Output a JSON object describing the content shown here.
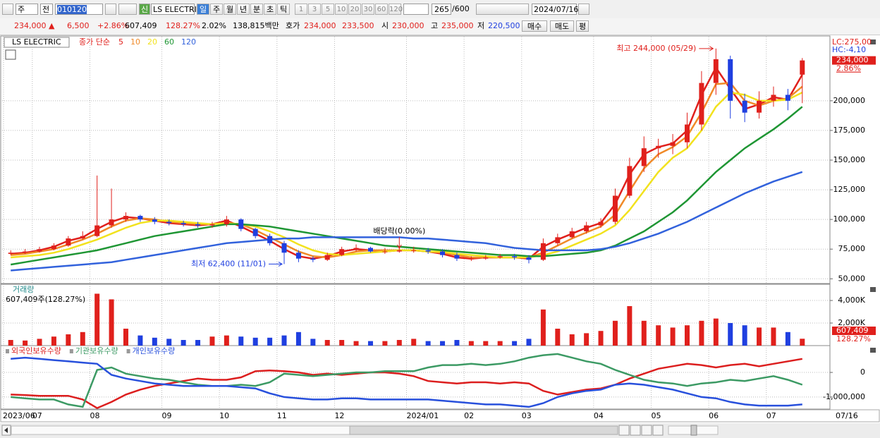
{
  "toolbar": {
    "market": "주",
    "prev": "전",
    "code": "010120",
    "new": "신",
    "name": "LS ELECTRI",
    "periods": [
      "일",
      "주",
      "월",
      "년",
      "분",
      "초",
      "틱"
    ],
    "intervals": [
      "1",
      "3",
      "5",
      "10",
      "20",
      "30",
      "60",
      "120"
    ],
    "count": "265",
    "max_count": "/600",
    "date": "2024/07/16"
  },
  "info_bar": {
    "price": "234,000 ▲",
    "change": "6,500",
    "change_rate": "+2.86%",
    "volume": "607,409",
    "volume_rate": "128.27%",
    "turnover": "2.02%",
    "amount": "138,815백만",
    "bid_label": "호가",
    "ask": "234,000",
    "bid": "233,500",
    "open_label": "시",
    "open": "230,000",
    "high_label": "고",
    "high": "235,000",
    "low_label": "저",
    "low": "220,500",
    "buy": "매수",
    "sell": "매도",
    "avg": "평"
  },
  "chart_data": [
    {
      "type": "candlestick",
      "title": "LS ELECTRIC",
      "subtitle": "종가 단순",
      "categories": [
        "2023/06",
        null,
        "07",
        null,
        null,
        null,
        "08",
        null,
        null,
        null,
        null,
        "09",
        null,
        null,
        null,
        "10",
        null,
        null,
        null,
        "11",
        null,
        null,
        null,
        "12",
        null,
        null,
        null,
        null,
        "2024/01",
        null,
        null,
        null,
        "02",
        null,
        null,
        null,
        "03",
        null,
        null,
        null,
        null,
        "04",
        null,
        null,
        null,
        "05",
        null,
        null,
        null,
        "06",
        null,
        null,
        null,
        "07",
        null,
        null
      ],
      "x_end_label": "07/16",
      "open": [
        71000,
        72000,
        73000,
        75000,
        78000,
        84000,
        86000,
        95000,
        100000,
        103000,
        100000,
        98000,
        97000,
        96000,
        95000,
        96000,
        100000,
        92000,
        86000,
        80000,
        72000,
        67000,
        66000,
        70000,
        75000,
        76000,
        73000,
        73000,
        74000,
        74000,
        73000,
        70000,
        67000,
        67000,
        68000,
        69000,
        68000,
        66000,
        80000,
        85000,
        90000,
        95000,
        98000,
        120000,
        145000,
        160000,
        162000,
        165000,
        180000,
        215000,
        235000,
        200000,
        190000,
        200000,
        205000,
        222000
      ],
      "high": [
        74000,
        75000,
        77000,
        80000,
        86000,
        90000,
        137000,
        126000,
        106000,
        104000,
        102000,
        100000,
        99000,
        98000,
        98000,
        103000,
        101000,
        93000,
        88000,
        82000,
        74000,
        69000,
        72000,
        77000,
        79000,
        77000,
        76000,
        76000,
        77000,
        76000,
        75000,
        72000,
        69000,
        70000,
        71000,
        71000,
        70000,
        84000,
        88000,
        93000,
        98000,
        101000,
        126000,
        152000,
        170000,
        168000,
        172000,
        190000,
        225000,
        244000,
        238000,
        206000,
        208000,
        212000,
        210000,
        236000
      ],
      "low": [
        70000,
        71000,
        72000,
        74000,
        77000,
        83000,
        85000,
        93000,
        98000,
        98000,
        96000,
        95000,
        94000,
        93000,
        93000,
        94000,
        90000,
        84000,
        78000,
        62400,
        64000,
        64000,
        65000,
        69000,
        73000,
        72000,
        71000,
        72000,
        72000,
        71000,
        68000,
        65000,
        65000,
        66000,
        67000,
        66000,
        63000,
        65000,
        78000,
        84000,
        88000,
        93000,
        96000,
        118000,
        140000,
        152000,
        155000,
        160000,
        175000,
        205000,
        185000,
        182000,
        185000,
        195000,
        192000,
        198000
      ],
      "close": [
        72000,
        73000,
        75000,
        78000,
        84000,
        86000,
        95000,
        100000,
        103000,
        100000,
        98000,
        97000,
        96000,
        95000,
        96000,
        100000,
        92000,
        86000,
        80000,
        72000,
        67000,
        66000,
        70000,
        75000,
        76000,
        73000,
        73000,
        74000,
        74000,
        73000,
        70000,
        67000,
        67000,
        68000,
        69000,
        68000,
        66000,
        80000,
        85000,
        90000,
        95000,
        98000,
        120000,
        145000,
        160000,
        162000,
        165000,
        180000,
        215000,
        235000,
        200000,
        190000,
        200000,
        205000,
        200000,
        234000
      ],
      "up_color": "#e0201c",
      "down_color": "#1f3fe0",
      "series": [
        {
          "name": "5",
          "color": "#e0201c",
          "values": [
            71000,
            72000,
            74000,
            77000,
            82000,
            85000,
            92000,
            98000,
            102000,
            101000,
            99000,
            97000,
            96000,
            95000,
            96000,
            99000,
            94000,
            88000,
            82000,
            75000,
            69000,
            67000,
            69000,
            73000,
            75000,
            74000,
            73000,
            74000,
            74000,
            73000,
            71000,
            68000,
            67000,
            68000,
            68000,
            68000,
            67000,
            77000,
            83000,
            88000,
            93000,
            97000,
            113000,
            138000,
            155000,
            161000,
            164000,
            175000,
            205000,
            228000,
            210000,
            193000,
            197000,
            203000,
            201000,
            222000
          ]
        },
        {
          "name": "10",
          "color": "#f08a28",
          "values": [
            70000,
            71000,
            73000,
            75000,
            79000,
            83000,
            88000,
            94000,
            99000,
            101000,
            100000,
            98000,
            97000,
            96000,
            96000,
            97000,
            96000,
            91000,
            85000,
            79000,
            73000,
            69000,
            68000,
            70000,
            73000,
            74000,
            74000,
            74000,
            74000,
            73000,
            72000,
            70000,
            68000,
            68000,
            68000,
            68000,
            68000,
            72000,
            78000,
            84000,
            89000,
            94000,
            104000,
            124000,
            143000,
            155000,
            161000,
            170000,
            190000,
            214000,
            215000,
            200000,
            196000,
            200000,
            202000,
            212000
          ]
        },
        {
          "name": "20",
          "color": "#f2e21e",
          "values": [
            68000,
            69000,
            70000,
            72000,
            75000,
            79000,
            83000,
            88000,
            93000,
            97000,
            99000,
            99000,
            98000,
            97000,
            96000,
            97000,
            96000,
            94000,
            90000,
            85000,
            79000,
            74000,
            71000,
            70000,
            71000,
            72000,
            73000,
            74000,
            74000,
            73000,
            73000,
            71000,
            70000,
            69000,
            68000,
            68000,
            68000,
            70000,
            73000,
            78000,
            83000,
            88000,
            95000,
            108000,
            124000,
            140000,
            152000,
            160000,
            175000,
            195000,
            207000,
            205000,
            200000,
            200000,
            201000,
            207000
          ]
        },
        {
          "name": "60",
          "color": "#1f9634",
          "values": [
            62000,
            64000,
            66000,
            68000,
            70000,
            72000,
            74000,
            77000,
            80000,
            83000,
            86000,
            88000,
            90000,
            92000,
            94000,
            96000,
            96000,
            95000,
            94000,
            92000,
            90000,
            88000,
            86000,
            84000,
            82000,
            80000,
            78000,
            77000,
            76000,
            75000,
            74000,
            73000,
            72000,
            71000,
            70000,
            70000,
            69000,
            69000,
            70000,
            71000,
            72000,
            74000,
            78000,
            84000,
            90000,
            98000,
            106000,
            116000,
            128000,
            140000,
            150000,
            160000,
            168000,
            176000,
            185000,
            195000
          ]
        },
        {
          "name": "120",
          "color": "#3262dc",
          "values": [
            57000,
            58000,
            59000,
            60000,
            61000,
            62000,
            63000,
            64000,
            66000,
            68000,
            70000,
            72000,
            74000,
            76000,
            78000,
            80000,
            81000,
            82000,
            83000,
            84000,
            84000,
            85000,
            85000,
            85000,
            85000,
            85000,
            85000,
            85000,
            84000,
            84000,
            83000,
            82000,
            81000,
            80000,
            78000,
            76000,
            75000,
            74000,
            74000,
            74000,
            74000,
            75000,
            77000,
            80000,
            84000,
            88000,
            93000,
            98000,
            104000,
            110000,
            116000,
            122000,
            127000,
            132000,
            136000,
            140000
          ]
        }
      ],
      "ylim": [
        46000,
        254000
      ],
      "yticks": [
        {
          "value": 50000,
          "label": "50,000"
        },
        {
          "value": 75000,
          "label": "75,000"
        },
        {
          "value": 100000,
          "label": "100,000"
        },
        {
          "value": 125000,
          "label": "125,000"
        },
        {
          "value": 150000,
          "label": "150,000"
        },
        {
          "value": 175000,
          "label": "175,000"
        },
        {
          "value": 200000,
          "label": "200,000"
        }
      ],
      "grid": true,
      "side_labels": [
        "LC:275,00",
        "HC:-4,10"
      ],
      "last_label": "234,000",
      "change_label": "2.86%",
      "annotations": {
        "high": "최고 244,000 (05/29)",
        "low": "최저 62,400 (11/01)",
        "dividend": "배당락(0.00%)"
      }
    },
    {
      "type": "bar",
      "title": "거래량",
      "subtitle": "607,409주(128.27%)",
      "values": [
        500000,
        450000,
        600000,
        800000,
        1000000,
        1200000,
        4600000,
        4100000,
        1500000,
        900000,
        700000,
        600000,
        500000,
        500000,
        800000,
        900000,
        800000,
        700000,
        700000,
        900000,
        1200000,
        600000,
        500000,
        500000,
        400000,
        400000,
        400000,
        500000,
        600000,
        400000,
        400000,
        500000,
        400000,
        400000,
        400000,
        400000,
        600000,
        3200000,
        1500000,
        1000000,
        1100000,
        1300000,
        2200000,
        3500000,
        2200000,
        1800000,
        1600000,
        1800000,
        2200000,
        2400000,
        2000000,
        1800000,
        1600000,
        1600000,
        1200000,
        607409
      ],
      "last_label": "607,409",
      "rate_label": "128.27%",
      "ylim": [
        0,
        5440000
      ],
      "yticks": [
        {
          "value": 2000000,
          "label": "2,000K"
        },
        {
          "value": 4000000,
          "label": "4,000K"
        }
      ],
      "grid": true
    },
    {
      "type": "line",
      "series": [
        {
          "name": "외국인보유수량",
          "color": "#dc1e1e",
          "values": [
            -900000,
            -920000,
            -950000,
            -950000,
            -950000,
            -1100000,
            -1450000,
            -1200000,
            -900000,
            -700000,
            -550000,
            -450000,
            -350000,
            -250000,
            -300000,
            -300000,
            -200000,
            50000,
            80000,
            50000,
            0,
            -100000,
            -50000,
            -100000,
            -50000,
            0,
            0,
            -50000,
            -150000,
            -350000,
            -400000,
            -450000,
            -400000,
            -400000,
            -450000,
            -400000,
            -450000,
            -750000,
            -900000,
            -800000,
            -700000,
            -650000,
            -500000,
            -250000,
            -50000,
            150000,
            250000,
            350000,
            300000,
            200000,
            300000,
            350000,
            250000,
            350000,
            450000,
            550000
          ]
        },
        {
          "name": "기관보유수량",
          "color": "#3c9a64",
          "values": [
            -1000000,
            -1050000,
            -1100000,
            -1100000,
            -1300000,
            -1400000,
            100000,
            200000,
            -50000,
            -150000,
            -250000,
            -300000,
            -400000,
            -500000,
            -550000,
            -550000,
            -500000,
            -550000,
            -400000,
            -50000,
            -100000,
            -150000,
            -100000,
            -50000,
            0,
            0,
            50000,
            50000,
            50000,
            200000,
            300000,
            300000,
            350000,
            300000,
            350000,
            450000,
            600000,
            700000,
            750000,
            600000,
            450000,
            350000,
            100000,
            -100000,
            -300000,
            -400000,
            -450000,
            -550000,
            -450000,
            -400000,
            -300000,
            -350000,
            -250000,
            -150000,
            -300000,
            -500000
          ]
        },
        {
          "name": "개인보유수량",
          "color": "#2850dc",
          "values": [
            550000,
            600000,
            550000,
            500000,
            450000,
            400000,
            350000,
            -100000,
            -250000,
            -350000,
            -450000,
            -500000,
            -550000,
            -550000,
            -550000,
            -550000,
            -600000,
            -650000,
            -850000,
            -1000000,
            -1050000,
            -1100000,
            -1100000,
            -1050000,
            -1050000,
            -1100000,
            -1100000,
            -1100000,
            -1100000,
            -1100000,
            -1150000,
            -1200000,
            -1250000,
            -1300000,
            -1300000,
            -1350000,
            -1400000,
            -1250000,
            -1000000,
            -850000,
            -750000,
            -700000,
            -500000,
            -450000,
            -500000,
            -600000,
            -700000,
            -850000,
            -1000000,
            -1050000,
            -1200000,
            -1300000,
            -1350000,
            -1350000,
            -1350000,
            -1300000
          ]
        }
      ],
      "ylim": [
        -1490000,
        1090000
      ],
      "yticks": [
        0,
        {
          "value": -1000000,
          "label": "-1,000,000"
        }
      ],
      "grid": true
    }
  ]
}
